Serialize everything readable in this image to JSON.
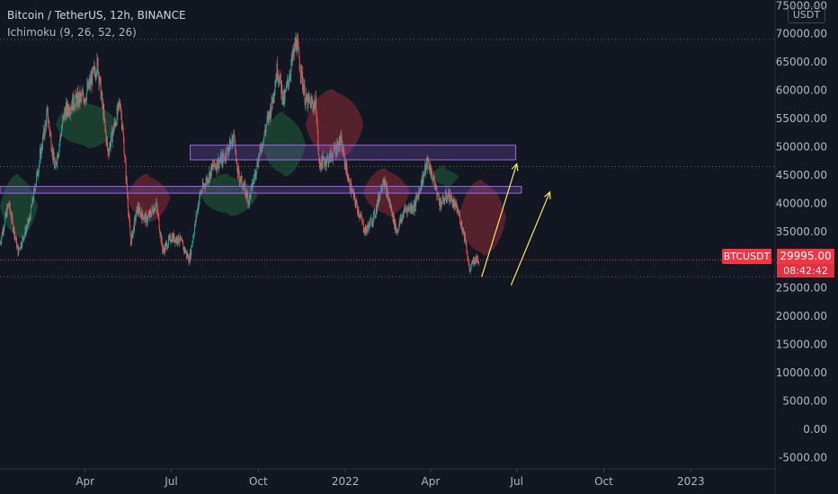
{
  "header": {
    "symbol_line": "Bitcoin / TetherUS, 12h, BINANCE",
    "indicator_line": "Ichimoku (9, 26, 52, 26)"
  },
  "currency_button": "USDT",
  "price_tag": {
    "symbol": "BTCUSDT",
    "price": "29995.00",
    "countdown": "08:42:42"
  },
  "colors": {
    "background": "#131722",
    "up": "#26a69a",
    "down": "#ef5350",
    "cloud_bull": "#1e4d36",
    "cloud_bear": "#6b2530",
    "zone": "#7e57c2",
    "arrow": "#f5e66b",
    "price_line": "#f23645"
  },
  "chart_data": {
    "type": "candlestick",
    "title": "Bitcoin / TetherUS, 12h, BINANCE",
    "xlabel": "",
    "ylabel": "",
    "y_ticks": [
      "75000.00",
      "70000.00",
      "65000.00",
      "60000.00",
      "55000.00",
      "50000.00",
      "45000.00",
      "40000.00",
      "35000.00",
      "30000.00",
      "25000.00",
      "20000.00",
      "15000.00",
      "10000.00",
      "5000.00",
      "0.00",
      "-5000.00"
    ],
    "y_tick_values": [
      75000,
      70000,
      65000,
      60000,
      55000,
      50000,
      45000,
      40000,
      35000,
      30000,
      25000,
      20000,
      15000,
      10000,
      5000,
      0,
      -5000
    ],
    "x_ticks": [
      {
        "label": "Apr",
        "date": "2021-04-01"
      },
      {
        "label": "Jul",
        "date": "2021-07-01"
      },
      {
        "label": "Oct",
        "date": "2021-10-01"
      },
      {
        "label": "2022",
        "date": "2022-01-01"
      },
      {
        "label": "Apr",
        "date": "2022-04-01"
      },
      {
        "label": "Jul",
        "date": "2022-07-01"
      },
      {
        "label": "Oct",
        "date": "2022-10-01"
      },
      {
        "label": "2023",
        "date": "2023-01-01"
      }
    ],
    "x_range": [
      "2021-01-01",
      "2023-03-31"
    ],
    "y_range": [
      -7000,
      76000
    ],
    "last_price": 29995,
    "price_path": [
      [
        "2021-01-01",
        33000
      ],
      [
        "2021-01-10",
        40000
      ],
      [
        "2021-01-20",
        31500
      ],
      [
        "2021-02-01",
        37000
      ],
      [
        "2021-02-10",
        46000
      ],
      [
        "2021-02-20",
        56000
      ],
      [
        "2021-02-28",
        46000
      ],
      [
        "2021-03-10",
        56000
      ],
      [
        "2021-03-20",
        58000
      ],
      [
        "2021-04-01",
        59000
      ],
      [
        "2021-04-14",
        64800
      ],
      [
        "2021-04-25",
        49000
      ],
      [
        "2021-05-08",
        58000
      ],
      [
        "2021-05-12",
        50000
      ],
      [
        "2021-05-19",
        33000
      ],
      [
        "2021-05-26",
        39000
      ],
      [
        "2021-06-05",
        37000
      ],
      [
        "2021-06-15",
        40000
      ],
      [
        "2021-06-22",
        31500
      ],
      [
        "2021-07-01",
        34000
      ],
      [
        "2021-07-10",
        33500
      ],
      [
        "2021-07-20",
        30000
      ],
      [
        "2021-07-31",
        41500
      ],
      [
        "2021-08-14",
        46500
      ],
      [
        "2021-08-25",
        48000
      ],
      [
        "2021-09-06",
        52000
      ],
      [
        "2021-09-08",
        46000
      ],
      [
        "2021-09-21",
        40500
      ],
      [
        "2021-10-01",
        48000
      ],
      [
        "2021-10-15",
        57500
      ],
      [
        "2021-10-21",
        64000
      ],
      [
        "2021-10-28",
        58000
      ],
      [
        "2021-11-10",
        68800
      ],
      [
        "2021-11-20",
        58000
      ],
      [
        "2021-12-01",
        57500
      ],
      [
        "2021-12-04",
        47000
      ],
      [
        "2021-12-15",
        48000
      ],
      [
        "2021-12-27",
        51000
      ],
      [
        "2022-01-05",
        43500
      ],
      [
        "2022-01-10",
        41000
      ],
      [
        "2022-01-22",
        35000
      ],
      [
        "2022-02-01",
        38000
      ],
      [
        "2022-02-10",
        44500
      ],
      [
        "2022-02-24",
        35000
      ],
      [
        "2022-03-05",
        39000
      ],
      [
        "2022-03-15",
        39500
      ],
      [
        "2022-03-29",
        47500
      ],
      [
        "2022-04-11",
        40000
      ],
      [
        "2022-04-20",
        41500
      ],
      [
        "2022-04-30",
        38500
      ],
      [
        "2022-05-08",
        33500
      ],
      [
        "2022-05-12",
        28000
      ],
      [
        "2022-05-17",
        30000
      ],
      [
        "2022-05-22",
        29995
      ]
    ],
    "ichimoku_cloud": [
      {
        "start": "2021-01-01",
        "end": "2021-02-10",
        "top": 45000,
        "bottom": 34000,
        "sentiment": "bull"
      },
      {
        "start": "2021-03-01",
        "end": "2021-05-05",
        "top": 58000,
        "bottom": 50000,
        "sentiment": "bull"
      },
      {
        "start": "2021-05-15",
        "end": "2021-06-30",
        "top": 45000,
        "bottom": 37000,
        "sentiment": "bear"
      },
      {
        "start": "2021-08-01",
        "end": "2021-09-30",
        "top": 45000,
        "bottom": 38000,
        "sentiment": "bull"
      },
      {
        "start": "2021-10-05",
        "end": "2021-11-20",
        "top": 56000,
        "bottom": 45000,
        "sentiment": "bull"
      },
      {
        "start": "2021-11-20",
        "end": "2022-01-20",
        "top": 60000,
        "bottom": 48000,
        "sentiment": "bear"
      },
      {
        "start": "2022-01-20",
        "end": "2022-03-10",
        "top": 46000,
        "bottom": 38000,
        "sentiment": "bear"
      },
      {
        "start": "2022-04-01",
        "end": "2022-05-01",
        "top": 46500,
        "bottom": 43000,
        "sentiment": "bull"
      },
      {
        "start": "2022-05-01",
        "end": "2022-06-20",
        "top": 44000,
        "bottom": 31000,
        "sentiment": "bear"
      }
    ],
    "horizontal_lines": [
      69000,
      46500,
      27000
    ],
    "zones": [
      {
        "start": "2021-07-21",
        "end": "2022-06-30",
        "top": 50300,
        "bottom": 47700
      },
      {
        "start": "2021-01-01",
        "end": "2022-07-06",
        "top": 43000,
        "bottom": 41800
      }
    ],
    "arrows": [
      {
        "from": [
          "2022-05-25",
          27000
        ],
        "to": [
          "2022-07-01",
          47000
        ]
      },
      {
        "from": [
          "2022-06-25",
          25500
        ],
        "to": [
          "2022-08-05",
          42000
        ]
      }
    ]
  }
}
